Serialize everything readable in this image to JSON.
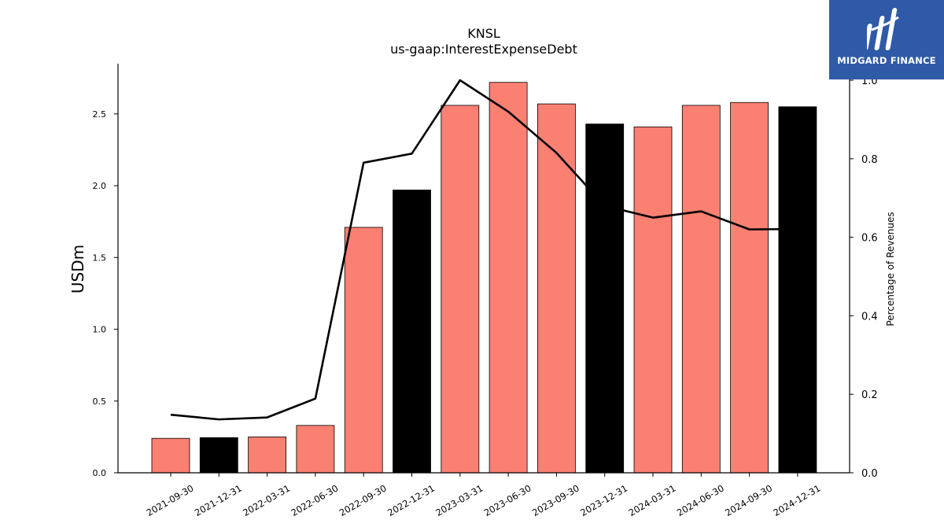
{
  "chart_data": {
    "type": "bar",
    "title": "KNSL",
    "subtitle": "us-gaap:InterestExpenseDebt",
    "ylabel": "USDm",
    "ylabel_right": "Percentage of Revenues",
    "categories": [
      "2021-09-30",
      "2021-12-31",
      "2022-03-31",
      "2022-06-30",
      "2022-09-30",
      "2022-12-31",
      "2023-03-31",
      "2023-06-30",
      "2023-09-30",
      "2023-12-31",
      "2024-03-31",
      "2024-06-30",
      "2024-09-30",
      "2024-12-31"
    ],
    "values": [
      0.24,
      0.245,
      0.25,
      0.33,
      1.71,
      1.97,
      2.56,
      2.72,
      2.57,
      2.43,
      2.41,
      2.56,
      2.58,
      2.55
    ],
    "bar_colors": [
      "#fa8072",
      "#000000",
      "#fa8072",
      "#fa8072",
      "#fa8072",
      "#000000",
      "#fa8072",
      "#fa8072",
      "#fa8072",
      "#000000",
      "#fa8072",
      "#fa8072",
      "#fa8072",
      "#000000"
    ],
    "line_values": [
      0.148,
      0.136,
      0.141,
      0.189,
      0.79,
      0.813,
      1.0,
      0.92,
      0.815,
      0.68,
      0.65,
      0.666,
      0.62,
      0.621
    ],
    "ylim": [
      0,
      2.85
    ],
    "ylim_right": [
      0,
      1.0
    ],
    "yticks": [
      "0.0",
      "0.5",
      "1.0",
      "1.5",
      "2.0",
      "2.5"
    ],
    "yticks_right": [
      "0.0",
      "0.2",
      "0.4",
      "0.6",
      "0.8",
      "1.0"
    ],
    "line_color": "#000000"
  },
  "logo": {
    "text": "MIDGARD FINANCE",
    "color": "#2f5aa8"
  }
}
